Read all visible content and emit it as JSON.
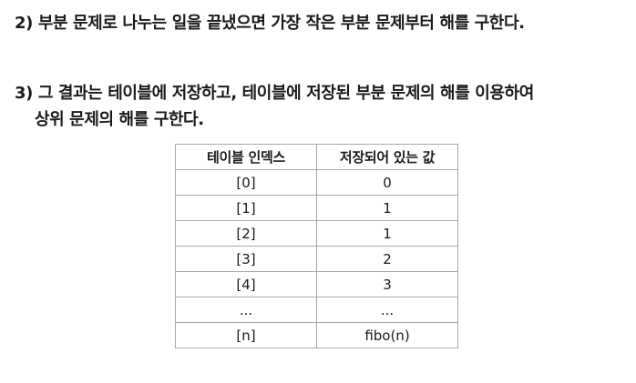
{
  "steps": {
    "step2": "2) 부분 문제로 나누는 일을 끝냈으면 가장 작은 부분 문제부터 해를 구한다.",
    "step3_line1": "3) 그 결과는 테이블에 저장하고, 테이블에 저장된 부분 문제의 해를 이용하여",
    "step3_line2": "상위 문제의 해를 구한다."
  },
  "table": {
    "headers": [
      "테이블 인덱스",
      "저장되어 있는 값"
    ],
    "rows": [
      [
        "[0]",
        "0"
      ],
      [
        "[1]",
        "1"
      ],
      [
        "[2]",
        "1"
      ],
      [
        "[3]",
        "2"
      ],
      [
        "[4]",
        "3"
      ],
      [
        "...",
        "..."
      ],
      [
        "[n]",
        "fibo(n)"
      ]
    ]
  }
}
